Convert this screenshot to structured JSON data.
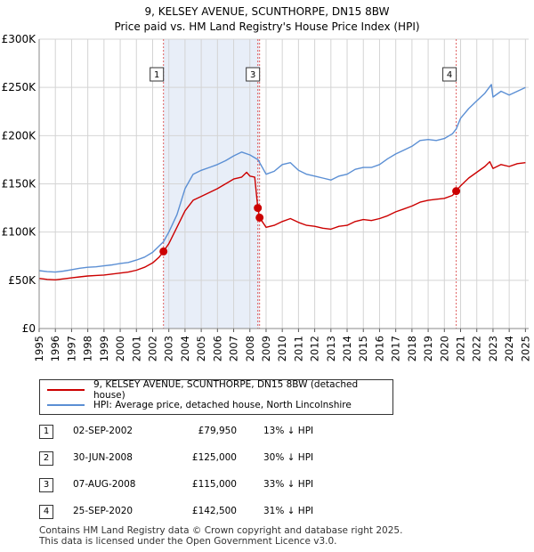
{
  "chart_data": {
    "type": "line",
    "title": "9, KELSEY AVENUE, SCUNTHORPE, DN15 8BW",
    "subtitle": "Price paid vs. HM Land Registry's House Price Index (HPI)",
    "xlabel": "",
    "ylabel": "",
    "xlim": [
      1995,
      2025.2
    ],
    "ylim": [
      0,
      300000
    ],
    "x_ticks": [
      "1995",
      "1996",
      "1997",
      "1998",
      "1999",
      "2000",
      "2001",
      "2002",
      "2003",
      "2004",
      "2005",
      "2006",
      "2007",
      "2008",
      "2009",
      "2010",
      "2011",
      "2012",
      "2013",
      "2014",
      "2015",
      "2016",
      "2017",
      "2018",
      "2019",
      "2020",
      "2021",
      "2022",
      "2023",
      "2024",
      "2025"
    ],
    "y_ticks": [
      {
        "value": 0,
        "label": "£0"
      },
      {
        "value": 50000,
        "label": "£50K"
      },
      {
        "value": 100000,
        "label": "£100K"
      },
      {
        "value": 150000,
        "label": "£150K"
      },
      {
        "value": 200000,
        "label": "£200K"
      },
      {
        "value": 250000,
        "label": "£250K"
      },
      {
        "value": 300000,
        "label": "£300K"
      }
    ],
    "grid": true,
    "colors": {
      "property": "#cc0000",
      "hpi": "#5b8fd4",
      "sale_band": "#e8eef8",
      "sale_line": "#e06060"
    },
    "series": [
      {
        "name": "9, KELSEY AVENUE, SCUNTHORPE, DN15 8BW (detached house)",
        "color": "#cc0000",
        "points": [
          [
            1995,
            52000
          ],
          [
            1995.5,
            51000
          ],
          [
            1996,
            50500
          ],
          [
            1996.5,
            51500
          ],
          [
            1997,
            52500
          ],
          [
            1997.5,
            53500
          ],
          [
            1998,
            54500
          ],
          [
            1998.5,
            55000
          ],
          [
            1999,
            55500
          ],
          [
            1999.5,
            56500
          ],
          [
            2000,
            57500
          ],
          [
            2000.5,
            58500
          ],
          [
            2001,
            60500
          ],
          [
            2001.5,
            63500
          ],
          [
            2002,
            68000
          ],
          [
            2002.4,
            74000
          ],
          [
            2002.67,
            79950
          ],
          [
            2003,
            88000
          ],
          [
            2003.5,
            105000
          ],
          [
            2004,
            122000
          ],
          [
            2004.5,
            133000
          ],
          [
            2005,
            137000
          ],
          [
            2005.5,
            141000
          ],
          [
            2006,
            145000
          ],
          [
            2006.5,
            150000
          ],
          [
            2007,
            155000
          ],
          [
            2007.5,
            157000
          ],
          [
            2007.8,
            162000
          ],
          [
            2008,
            158000
          ],
          [
            2008.3,
            157000
          ],
          [
            2008.49,
            125000
          ],
          [
            2008.6,
            115000
          ],
          [
            2008.8,
            110000
          ],
          [
            2009,
            105000
          ],
          [
            2009.5,
            107000
          ],
          [
            2010,
            111000
          ],
          [
            2010.5,
            114000
          ],
          [
            2011,
            110000
          ],
          [
            2011.5,
            107000
          ],
          [
            2012,
            106000
          ],
          [
            2012.5,
            104000
          ],
          [
            2013,
            103000
          ],
          [
            2013.5,
            106000
          ],
          [
            2014,
            107000
          ],
          [
            2014.5,
            111000
          ],
          [
            2015,
            113000
          ],
          [
            2015.5,
            112000
          ],
          [
            2016,
            114000
          ],
          [
            2016.5,
            117000
          ],
          [
            2017,
            121000
          ],
          [
            2017.5,
            124000
          ],
          [
            2018,
            127000
          ],
          [
            2018.5,
            131000
          ],
          [
            2019,
            133000
          ],
          [
            2019.5,
            134000
          ],
          [
            2020,
            135000
          ],
          [
            2020.5,
            138000
          ],
          [
            2020.73,
            142500
          ],
          [
            2021,
            148000
          ],
          [
            2021.5,
            156000
          ],
          [
            2022,
            162000
          ],
          [
            2022.5,
            168000
          ],
          [
            2022.8,
            173000
          ],
          [
            2023,
            166000
          ],
          [
            2023.5,
            170000
          ],
          [
            2024,
            168000
          ],
          [
            2024.5,
            171000
          ],
          [
            2025,
            172000
          ]
        ]
      },
      {
        "name": "HPI: Average price, detached house, North Lincolnshire",
        "color": "#5b8fd4",
        "points": [
          [
            1995,
            60000
          ],
          [
            1995.5,
            59000
          ],
          [
            1996,
            58500
          ],
          [
            1996.5,
            59500
          ],
          [
            1997,
            61000
          ],
          [
            1997.5,
            62500
          ],
          [
            1998,
            63500
          ],
          [
            1998.5,
            64000
          ],
          [
            1999,
            65000
          ],
          [
            1999.5,
            66000
          ],
          [
            2000,
            67500
          ],
          [
            2000.5,
            68500
          ],
          [
            2001,
            71000
          ],
          [
            2001.5,
            74000
          ],
          [
            2002,
            79000
          ],
          [
            2002.67,
            90000
          ],
          [
            2003,
            100000
          ],
          [
            2003.5,
            118000
          ],
          [
            2004,
            145000
          ],
          [
            2004.5,
            160000
          ],
          [
            2005,
            164000
          ],
          [
            2005.5,
            167000
          ],
          [
            2006,
            170000
          ],
          [
            2006.5,
            174000
          ],
          [
            2007,
            179000
          ],
          [
            2007.5,
            183000
          ],
          [
            2008,
            180000
          ],
          [
            2008.5,
            175000
          ],
          [
            2009,
            160000
          ],
          [
            2009.5,
            163000
          ],
          [
            2010,
            170000
          ],
          [
            2010.5,
            172000
          ],
          [
            2011,
            164000
          ],
          [
            2011.5,
            160000
          ],
          [
            2012,
            158000
          ],
          [
            2012.5,
            156000
          ],
          [
            2013,
            154000
          ],
          [
            2013.5,
            158000
          ],
          [
            2014,
            160000
          ],
          [
            2014.5,
            165000
          ],
          [
            2015,
            167000
          ],
          [
            2015.5,
            167000
          ],
          [
            2016,
            170000
          ],
          [
            2016.5,
            176000
          ],
          [
            2017,
            181000
          ],
          [
            2017.5,
            185000
          ],
          [
            2018,
            189000
          ],
          [
            2018.5,
            195000
          ],
          [
            2019,
            196000
          ],
          [
            2019.5,
            195000
          ],
          [
            2020,
            197000
          ],
          [
            2020.5,
            202000
          ],
          [
            2020.73,
            207000
          ],
          [
            2021,
            218000
          ],
          [
            2021.5,
            228000
          ],
          [
            2022,
            236000
          ],
          [
            2022.5,
            244000
          ],
          [
            2022.9,
            253000
          ],
          [
            2023,
            240000
          ],
          [
            2023.5,
            246000
          ],
          [
            2024,
            242000
          ],
          [
            2024.5,
            246000
          ],
          [
            2025,
            250000
          ]
        ]
      }
    ],
    "sales": [
      {
        "id": "1",
        "date": "02-SEP-2002",
        "x": 2002.67,
        "price": 79950,
        "price_label": "£79,950",
        "hpi": "13% ↓ HPI"
      },
      {
        "id": "2",
        "date": "30-JUN-2008",
        "x": 2008.49,
        "price": 125000,
        "price_label": "£125,000",
        "hpi": "30% ↓ HPI"
      },
      {
        "id": "3",
        "date": "07-AUG-2008",
        "x": 2008.6,
        "price": 115000,
        "price_label": "£115,000",
        "hpi": "33% ↓ HPI"
      },
      {
        "id": "4",
        "date": "25-SEP-2020",
        "x": 2020.73,
        "price": 142500,
        "price_label": "£142,500",
        "hpi": "31% ↓ HPI"
      }
    ],
    "labeled_sales": [
      "1",
      "3",
      "4"
    ]
  },
  "legend": {
    "property_label": "9, KELSEY AVENUE, SCUNTHORPE, DN15 8BW (detached house)",
    "hpi_label": "HPI: Average price, detached house, North Lincolnshire"
  },
  "table": {
    "rows": [
      {
        "num": "1",
        "date": "02-SEP-2002",
        "price": "£79,950",
        "hpi": "13% ↓ HPI"
      },
      {
        "num": "2",
        "date": "30-JUN-2008",
        "price": "£125,000",
        "hpi": "30% ↓ HPI"
      },
      {
        "num": "3",
        "date": "07-AUG-2008",
        "price": "£115,000",
        "hpi": "33% ↓ HPI"
      },
      {
        "num": "4",
        "date": "25-SEP-2020",
        "price": "£142,500",
        "hpi": "31% ↓ HPI"
      }
    ]
  },
  "footer": {
    "line1": "Contains HM Land Registry data © Crown copyright and database right 2025.",
    "line2": "This data is licensed under the Open Government Licence v3.0."
  }
}
